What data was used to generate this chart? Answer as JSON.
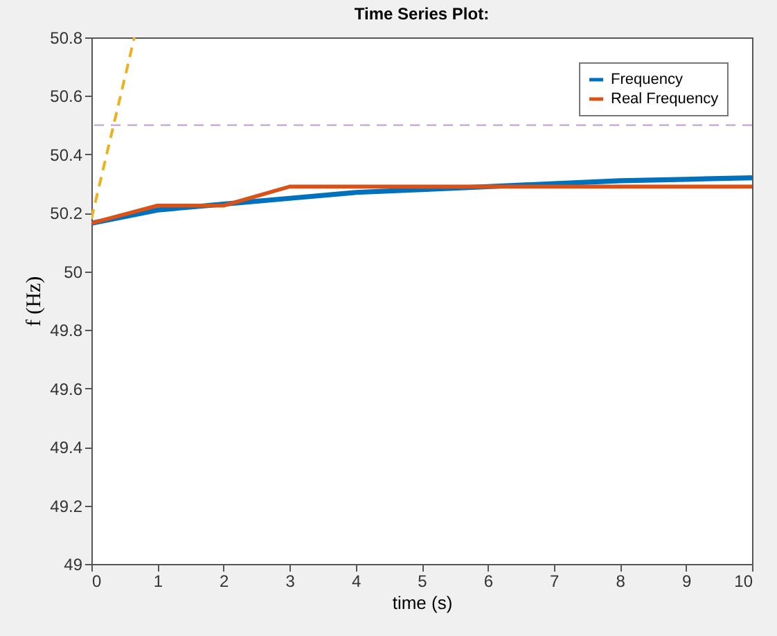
{
  "chart_data": {
    "type": "line",
    "title": "Time Series Plot:",
    "xlabel": "time (s)",
    "ylabel": "f (Hz)",
    "x": [
      0,
      1,
      2,
      3,
      4,
      5,
      6,
      7,
      8,
      9,
      10
    ],
    "series": [
      {
        "name": "Frequency",
        "color": "#0072bd",
        "values": [
          50.165,
          50.21,
          50.23,
          50.25,
          50.27,
          50.28,
          50.29,
          50.3,
          50.31,
          50.315,
          50.32
        ]
      },
      {
        "name": "Real Frequency",
        "color": "#d95319",
        "values": [
          50.165,
          50.225,
          50.225,
          50.29,
          50.29,
          50.29,
          50.29,
          50.29,
          50.29,
          50.29,
          50.29
        ]
      },
      {
        "color": "#edb120",
        "x": [
          0,
          0.65
        ],
        "values": [
          50.18,
          50.8
        ],
        "line_style": "dashed"
      }
    ],
    "ref_lines": [
      {
        "axis": "y",
        "value": 50.5,
        "color": "#c9a0dc",
        "line_style": "dashed"
      }
    ],
    "xlim": [
      0,
      10
    ],
    "xticks": [
      0,
      1,
      2,
      3,
      4,
      5,
      6,
      7,
      8,
      9,
      10
    ],
    "ylim": [
      49,
      50.8
    ],
    "yticks": [
      49,
      49.2,
      49.4,
      49.6,
      49.8,
      50,
      50.2,
      50.4,
      50.6,
      50.8
    ],
    "legend": "top right",
    "grid": false,
    "marker": "none",
    "line_style": "solid"
  }
}
